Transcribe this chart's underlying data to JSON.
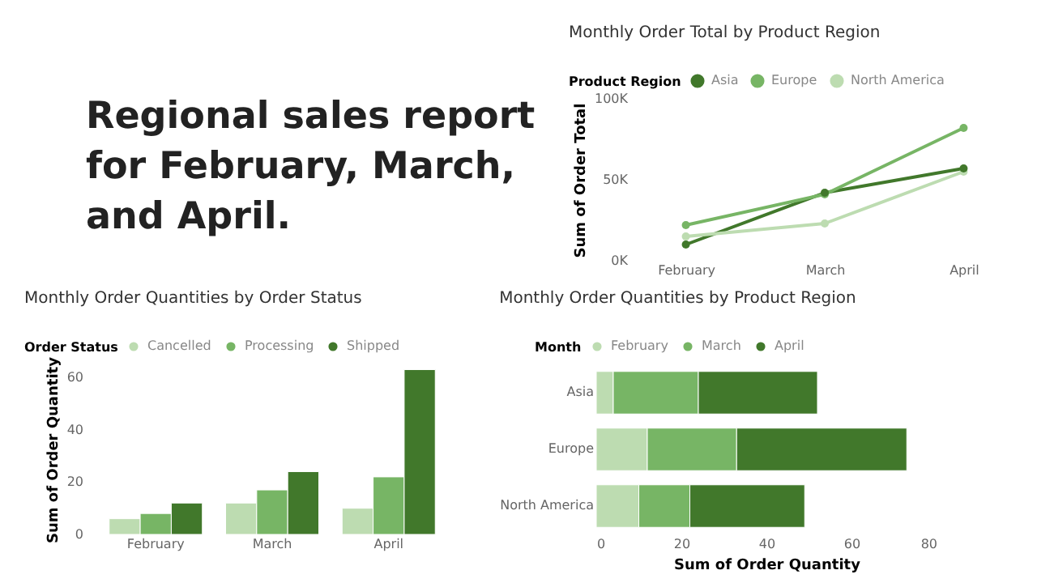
{
  "chart_data": [
    {
      "type": "other",
      "title": "Regional sales report for February, March, and April."
    },
    {
      "type": "line",
      "title": "Monthly Order Total by Product Region",
      "ylabel": "Sum of Order Total",
      "legend_title": "Product Region",
      "legend": "top left",
      "marker": "circle",
      "grid": false,
      "categories": [
        "February",
        "March",
        "April"
      ],
      "ylim": [
        0,
        100000
      ],
      "yticks": [
        {
          "value": 0,
          "label": "0K"
        },
        {
          "value": 50000,
          "label": "50K"
        },
        {
          "value": 100000,
          "label": "100K"
        }
      ],
      "series": [
        {
          "name": "Asia",
          "color": "#41782b",
          "values": [
            10000,
            42000,
            57000
          ]
        },
        {
          "name": "Europe",
          "color": "#77b565",
          "values": [
            22000,
            41000,
            82000
          ]
        },
        {
          "name": "North America",
          "color": "#bddcb1",
          "values": [
            15000,
            23000,
            55000
          ]
        }
      ]
    },
    {
      "type": "bar",
      "title": "Monthly Order Quantities by Order Status",
      "ylabel": "Sum of Order Quantity",
      "legend_title": "Order Status",
      "legend": "top left",
      "grid": false,
      "categories": [
        "February",
        "March",
        "April"
      ],
      "ylim": [
        0,
        65
      ],
      "yticks": [
        0,
        20,
        40,
        60
      ],
      "series": [
        {
          "name": "Cancelled",
          "color": "#bddcb1",
          "values": [
            6,
            12,
            10
          ]
        },
        {
          "name": "Processing",
          "color": "#77b565",
          "values": [
            8,
            17,
            22
          ]
        },
        {
          "name": "Shipped",
          "color": "#41782b",
          "values": [
            12,
            24,
            63
          ]
        }
      ]
    },
    {
      "type": "bar",
      "orientation": "horizontal",
      "stacked": true,
      "title": "Monthly Order Quantities by Product Region",
      "xlabel": "Sum of Order Quantity",
      "legend_title": "Month",
      "legend": "top left",
      "grid": false,
      "categories": [
        "Asia",
        "Europe",
        "North America"
      ],
      "xlim": [
        0,
        80
      ],
      "xticks": [
        0,
        20,
        40,
        60,
        80
      ],
      "series": [
        {
          "name": "February",
          "color": "#bddcb1",
          "values": [
            4,
            12,
            10
          ]
        },
        {
          "name": "March",
          "color": "#77b565",
          "values": [
            20,
            21,
            12
          ]
        },
        {
          "name": "April",
          "color": "#41782b",
          "values": [
            28,
            40,
            27
          ]
        }
      ]
    }
  ]
}
